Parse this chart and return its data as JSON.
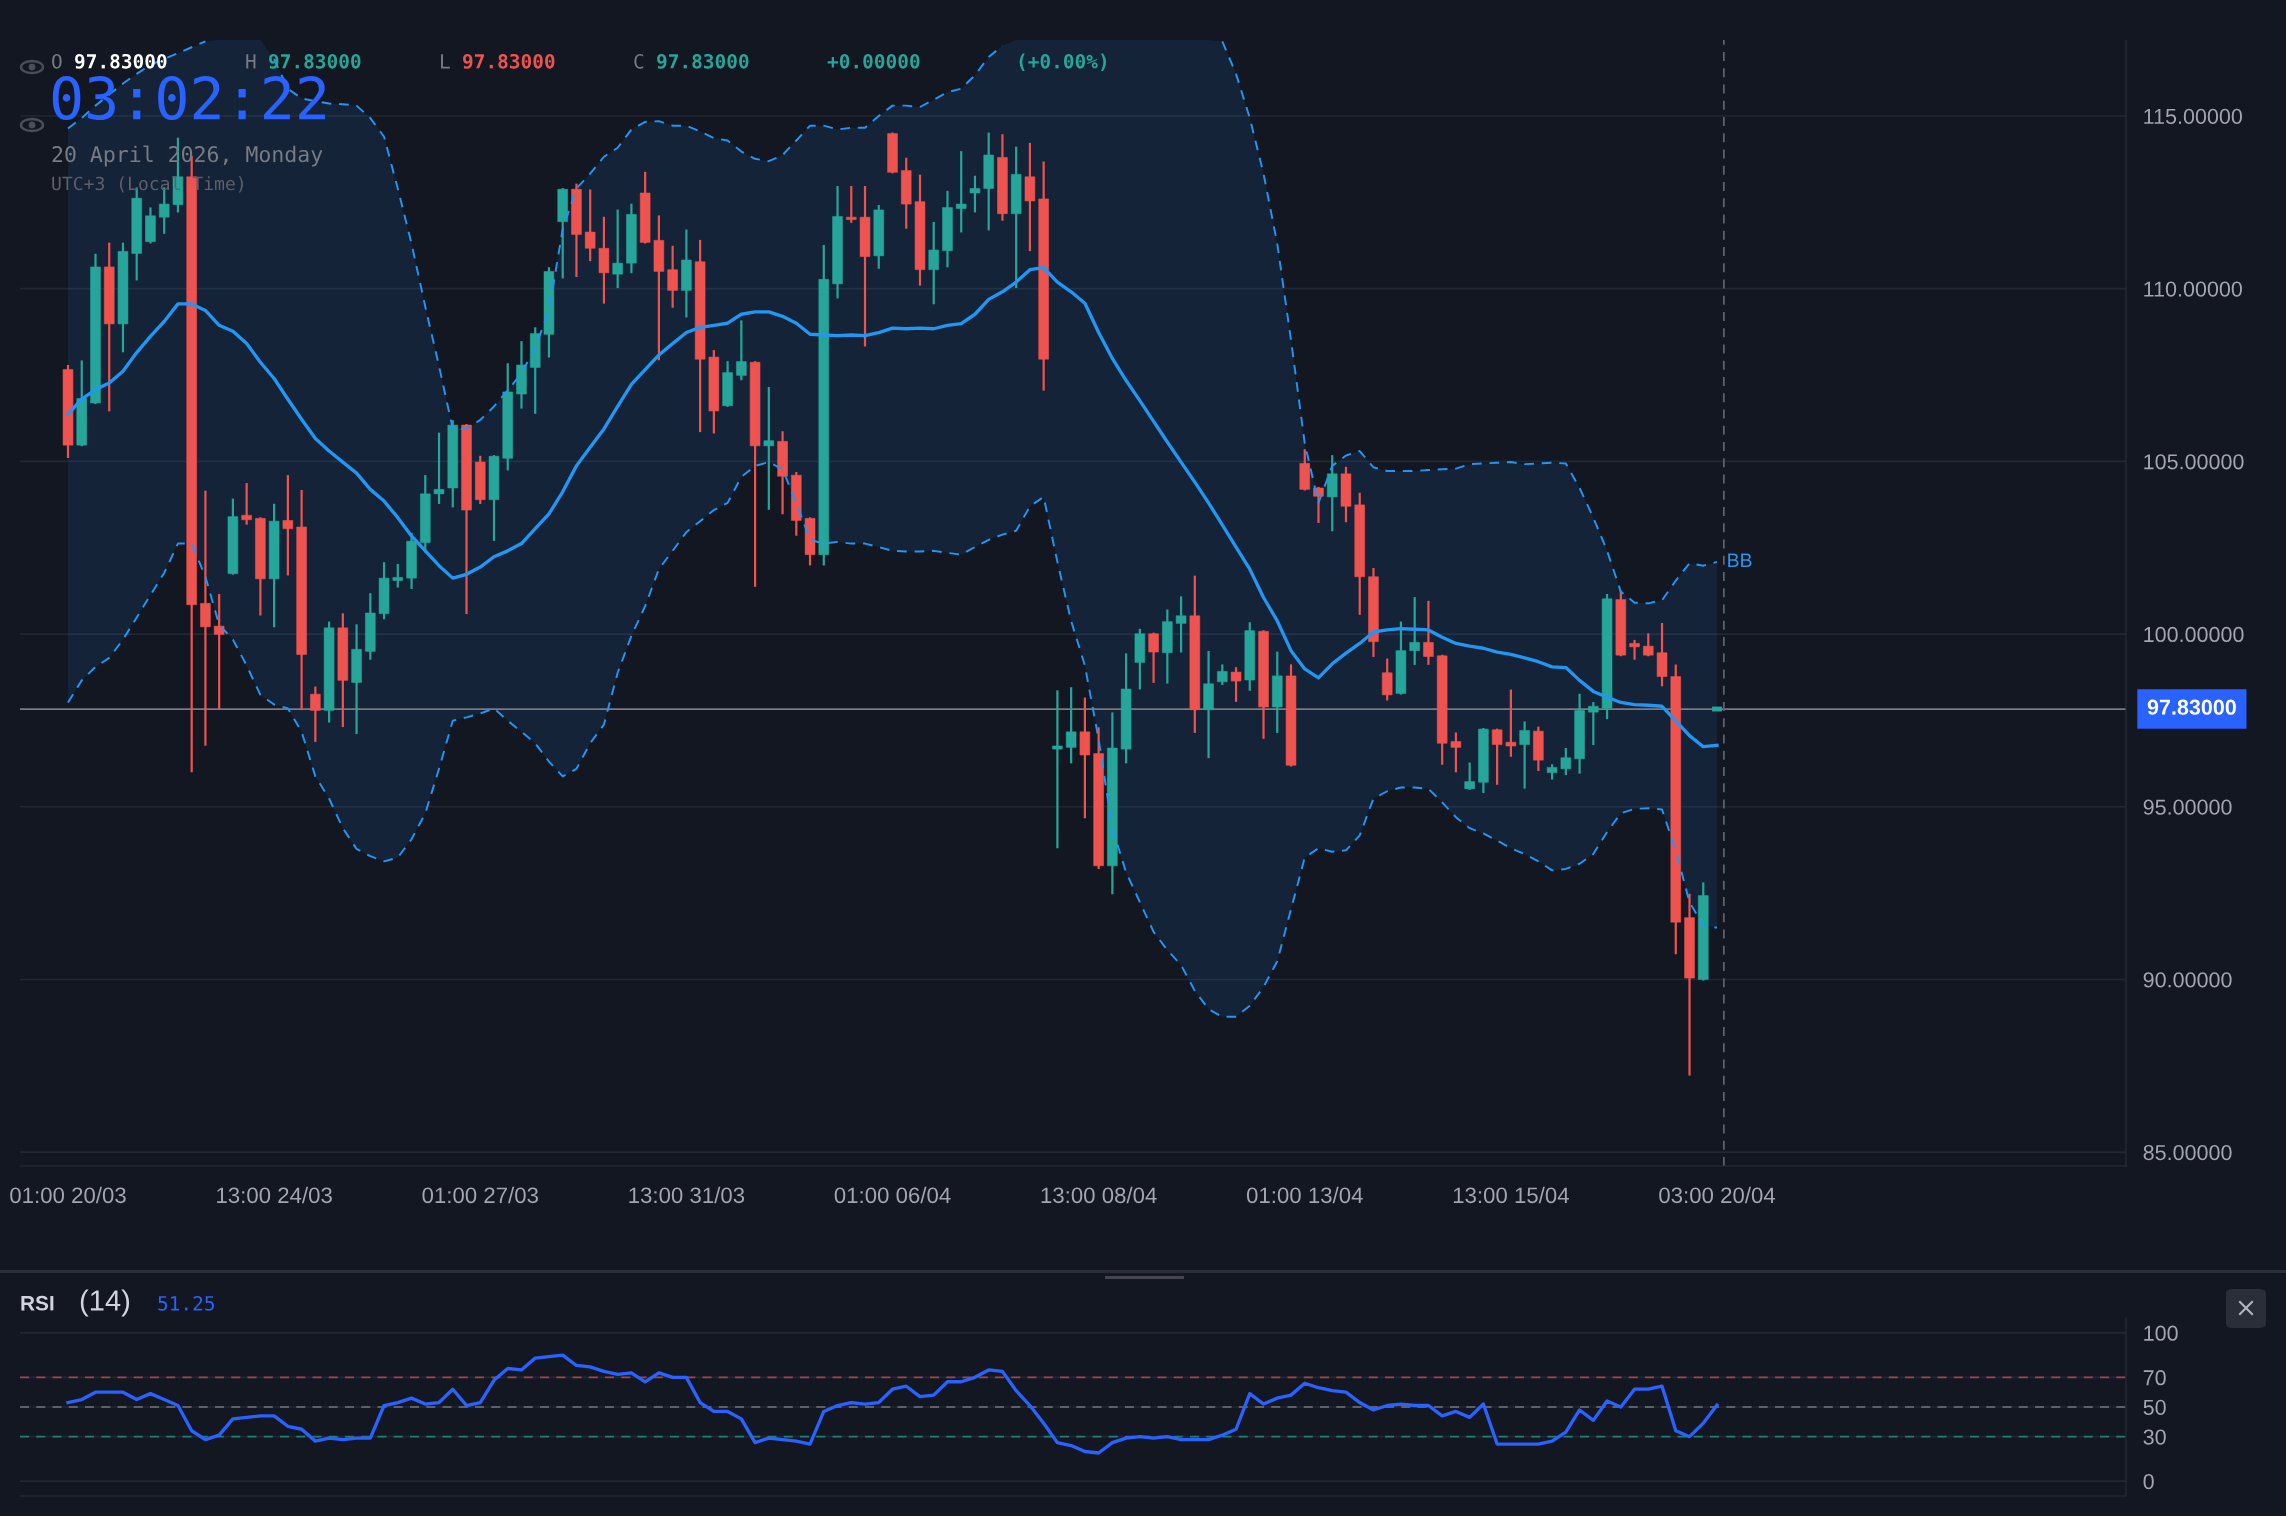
{
  "chart_data": [
    {
      "type": "candlestick",
      "categories": [
        "01:00 20/03",
        null,
        null,
        null,
        null,
        null,
        null,
        null,
        null,
        null,
        null,
        null,
        null,
        null,
        null,
        "13:00 24/03",
        null,
        null,
        null,
        null,
        null,
        null,
        null,
        null,
        null,
        null,
        null,
        null,
        null,
        null,
        "01:00 27/03",
        null,
        null,
        null,
        null,
        null,
        null,
        null,
        null,
        null,
        null,
        null,
        null,
        null,
        null,
        "13:00 31/03",
        null,
        null,
        null,
        null,
        null,
        null,
        null,
        null,
        null,
        null,
        null,
        null,
        null,
        null,
        "01:00 06/04",
        null,
        null,
        null,
        null,
        null,
        null,
        null,
        null,
        null,
        null,
        null,
        null,
        null,
        null,
        "13:00 08/04",
        null,
        null,
        null,
        null,
        null,
        null,
        null,
        null,
        null,
        null,
        null,
        null,
        null,
        null,
        "01:00 13/04",
        null,
        null,
        null,
        null,
        null,
        null,
        null,
        null,
        null,
        null,
        null,
        null,
        null,
        null,
        "13:00 15/04",
        null,
        null,
        null,
        null,
        null,
        null,
        null,
        null,
        null,
        null,
        null,
        null,
        null,
        null,
        "03:00 20/04"
      ],
      "ohlc": [
        [
          107.66,
          107.76,
          105.13,
          105.47
        ],
        [
          105.47,
          107.89,
          105.47,
          106.82
        ],
        [
          106.69,
          110.98,
          106.69,
          110.63
        ],
        [
          110.63,
          111.3,
          106.48,
          108.98
        ],
        [
          108.98,
          111.3,
          108.19,
          111.08
        ],
        [
          111.02,
          112.9,
          110.27,
          112.62
        ],
        [
          111.36,
          112.32,
          111.34,
          112.11
        ],
        [
          112.07,
          112.9,
          111.62,
          112.45
        ],
        [
          112.43,
          114.34,
          112.24,
          113.24
        ],
        [
          113.24,
          113.82,
          96.03,
          100.85
        ],
        [
          100.89,
          104.12,
          96.8,
          100.21
        ],
        [
          100.23,
          101.13,
          97.85,
          99.99
        ],
        [
          101.75,
          103.89,
          101.75,
          103.4
        ],
        [
          103.44,
          104.34,
          103.2,
          103.31
        ],
        [
          103.35,
          103.35,
          100.57,
          101.6
        ],
        [
          101.6,
          103.74,
          100.23,
          103.27
        ],
        [
          103.29,
          104.57,
          101.73,
          103.05
        ],
        [
          103.1,
          104.14,
          97.83,
          99.41
        ],
        [
          98.26,
          98.45,
          96.91,
          97.79
        ],
        [
          97.79,
          100.33,
          97.47,
          100.18
        ],
        [
          100.18,
          100.57,
          97.34,
          98.66
        ],
        [
          98.6,
          100.25,
          97.14,
          99.56
        ],
        [
          99.5,
          101.15,
          99.29,
          100.61
        ],
        [
          100.59,
          102.05,
          100.46,
          101.62
        ],
        [
          101.55,
          102.0,
          101.38,
          101.64
        ],
        [
          101.62,
          102.9,
          101.34,
          102.69
        ],
        [
          102.65,
          104.57,
          102.39,
          104.06
        ],
        [
          104.06,
          105.8,
          103.8,
          104.19
        ],
        [
          104.23,
          106.16,
          103.7,
          106.05
        ],
        [
          106.05,
          106.05,
          100.61,
          103.59
        ],
        [
          104.98,
          105.13,
          103.8,
          103.89
        ],
        [
          103.89,
          105.15,
          102.73,
          105.15
        ],
        [
          105.09,
          107.81,
          104.77,
          107.01
        ],
        [
          106.95,
          108.45,
          106.56,
          107.79
        ],
        [
          107.72,
          108.85,
          106.41,
          108.7
        ],
        [
          108.68,
          110.59,
          108.04,
          110.5
        ],
        [
          111.94,
          112.88,
          110.33,
          112.88
        ],
        [
          112.88,
          113.01,
          110.37,
          111.57
        ],
        [
          111.64,
          112.84,
          110.83,
          111.17
        ],
        [
          111.17,
          112.05,
          109.6,
          110.46
        ],
        [
          110.42,
          112.26,
          110.05,
          110.74
        ],
        [
          110.74,
          112.43,
          110.48,
          112.15
        ],
        [
          112.77,
          113.35,
          111.34,
          111.34
        ],
        [
          111.4,
          112.09,
          107.96,
          110.5
        ],
        [
          110.55,
          111.21,
          109.48,
          109.95
        ],
        [
          109.95,
          111.68,
          109.2,
          110.83
        ],
        [
          110.78,
          111.38,
          105.88,
          107.96
        ],
        [
          108.02,
          108.19,
          105.84,
          106.46
        ],
        [
          106.61,
          107.87,
          106.61,
          107.57
        ],
        [
          107.49,
          109.05,
          107.38,
          107.89
        ],
        [
          107.87,
          107.87,
          101.4,
          105.45
        ],
        [
          105.45,
          107.12,
          103.63,
          105.6
        ],
        [
          105.58,
          105.84,
          103.5,
          104.57
        ],
        [
          104.6,
          104.66,
          102.88,
          103.29
        ],
        [
          103.35,
          103.35,
          102.02,
          102.3
        ],
        [
          102.3,
          111.23,
          102.02,
          110.27
        ],
        [
          110.14,
          112.94,
          109.75,
          112.09
        ],
        [
          112.07,
          112.94,
          111.94,
          112.0
        ],
        [
          112.07,
          112.94,
          108.36,
          110.93
        ],
        [
          110.95,
          112.39,
          110.61,
          112.28
        ],
        [
          114.49,
          114.49,
          113.37,
          113.37
        ],
        [
          113.42,
          113.76,
          111.77,
          112.45
        ],
        [
          112.52,
          113.27,
          110.12,
          110.55
        ],
        [
          110.55,
          111.9,
          109.58,
          111.12
        ],
        [
          111.1,
          112.8,
          110.65,
          112.35
        ],
        [
          112.32,
          113.95,
          111.66,
          112.45
        ],
        [
          112.77,
          113.24,
          112.24,
          112.9
        ],
        [
          112.9,
          114.49,
          111.72,
          113.87
        ],
        [
          113.8,
          114.44,
          112.0,
          112.17
        ],
        [
          112.17,
          114.08,
          110.05,
          113.31
        ],
        [
          113.24,
          114.19,
          111.12,
          112.54
        ],
        [
          112.6,
          113.65,
          107.08,
          107.96
        ],
        [
          96.67,
          98.34,
          93.83,
          96.76
        ],
        [
          96.72,
          98.43,
          96.29,
          97.17
        ],
        [
          97.17,
          98.13,
          94.7,
          96.5
        ],
        [
          96.54,
          97.27,
          93.23,
          93.29
        ],
        [
          93.29,
          97.7,
          92.5,
          96.7
        ],
        [
          96.67,
          99.41,
          96.29,
          98.41
        ],
        [
          99.18,
          100.12,
          98.43,
          100.01
        ],
        [
          100.01,
          100.01,
          98.62,
          99.48
        ],
        [
          99.46,
          100.68,
          98.6,
          100.36
        ],
        [
          100.31,
          101.06,
          99.5,
          100.53
        ],
        [
          100.53,
          101.66,
          97.17,
          97.81
        ],
        [
          97.81,
          99.48,
          96.44,
          98.56
        ],
        [
          98.62,
          99.09,
          98.56,
          98.92
        ],
        [
          98.9,
          99.01,
          98.07,
          98.64
        ],
        [
          98.67,
          100.31,
          98.39,
          100.1
        ],
        [
          100.08,
          100.08,
          97.0,
          97.89
        ],
        [
          97.89,
          99.46,
          97.17,
          98.79
        ],
        [
          98.79,
          99.09,
          96.2,
          96.2
        ],
        [
          104.94,
          105.32,
          104.19,
          104.19
        ],
        [
          104.23,
          104.23,
          103.25,
          103.99
        ],
        [
          103.97,
          105.15,
          103.01,
          104.64
        ],
        [
          104.64,
          104.81,
          103.27,
          103.7
        ],
        [
          103.74,
          104.06,
          100.59,
          101.66
        ],
        [
          101.66,
          101.88,
          99.37,
          99.78
        ],
        [
          98.88,
          99.26,
          98.11,
          98.24
        ],
        [
          98.28,
          100.33,
          98.28,
          99.52
        ],
        [
          99.52,
          101.04,
          99.14,
          99.76
        ],
        [
          99.76,
          100.93,
          99.14,
          99.35
        ],
        [
          99.37,
          99.37,
          96.25,
          96.84
        ],
        [
          96.89,
          97.12,
          96.03,
          96.72
        ],
        [
          95.52,
          96.25,
          95.52,
          95.73
        ],
        [
          95.71,
          97.25,
          95.43,
          97.25
        ],
        [
          97.23,
          97.23,
          95.67,
          96.8
        ],
        [
          96.87,
          98.36,
          96.48,
          96.76
        ],
        [
          96.8,
          97.44,
          95.56,
          97.21
        ],
        [
          97.19,
          97.29,
          96.07,
          96.35
        ],
        [
          95.99,
          96.2,
          95.82,
          96.14
        ],
        [
          96.1,
          96.67,
          95.95,
          96.42
        ],
        [
          96.39,
          98.24,
          95.99,
          97.79
        ],
        [
          97.74,
          98.0,
          96.82,
          97.91
        ],
        [
          97.85,
          101.13,
          97.57,
          101.02
        ],
        [
          101.0,
          101.23,
          99.39,
          99.39
        ],
        [
          99.73,
          99.8,
          99.29,
          99.63
        ],
        [
          99.65,
          99.99,
          99.39,
          99.39
        ],
        [
          99.46,
          100.29,
          98.52,
          98.77
        ],
        [
          98.77,
          99.09,
          90.76,
          91.66
        ],
        [
          91.79,
          92.45,
          87.25,
          90.04
        ],
        [
          90.0,
          92.78,
          90.0,
          92.43
        ],
        [
          97.83,
          97.83,
          97.83,
          97.83
        ]
      ],
      "colors": [
        "#ef5350",
        "#26a69a",
        "#26a69a",
        "#ef5350",
        "#26a69a",
        "#26a69a",
        "#26a69a",
        "#26a69a",
        "#26a69a",
        "#ef5350",
        "#ef5350",
        "#ef5350",
        "#26a69a",
        "#ef5350",
        "#ef5350",
        "#26a69a",
        "#ef5350",
        "#ef5350",
        "#ef5350",
        "#26a69a",
        "#ef5350",
        "#26a69a",
        "#26a69a",
        "#26a69a",
        "#26a69a",
        "#26a69a",
        "#26a69a",
        "#26a69a",
        "#26a69a",
        "#ef5350",
        "#ef5350",
        "#26a69a",
        "#26a69a",
        "#26a69a",
        "#26a69a",
        "#26a69a",
        "#26a69a",
        "#ef5350",
        "#ef5350",
        "#ef5350",
        "#26a69a",
        "#26a69a",
        "#ef5350",
        "#ef5350",
        "#ef5350",
        "#26a69a",
        "#ef5350",
        "#ef5350",
        "#26a69a",
        "#26a69a",
        "#ef5350",
        "#26a69a",
        "#ef5350",
        "#ef5350",
        "#ef5350",
        "#26a69a",
        "#26a69a",
        "#ef5350",
        "#ef5350",
        "#26a69a",
        "#ef5350",
        "#ef5350",
        "#ef5350",
        "#26a69a",
        "#26a69a",
        "#26a69a",
        "#26a69a",
        "#26a69a",
        "#ef5350",
        "#26a69a",
        "#ef5350",
        "#ef5350",
        "#26a69a",
        "#26a69a",
        "#ef5350",
        "#ef5350",
        "#26a69a",
        "#26a69a",
        "#26a69a",
        "#ef5350",
        "#26a69a",
        "#26a69a",
        "#ef5350",
        "#26a69a",
        "#26a69a",
        "#ef5350",
        "#26a69a",
        "#ef5350",
        "#26a69a",
        "#ef5350",
        "#ef5350",
        "#ef5350",
        "#26a69a",
        "#ef5350",
        "#ef5350",
        "#ef5350",
        "#ef5350",
        "#26a69a",
        "#26a69a",
        "#ef5350",
        "#ef5350",
        "#ef5350",
        "#26a69a",
        "#26a69a",
        "#ef5350",
        "#ef5350",
        "#26a69a",
        "#ef5350",
        "#26a69a",
        "#26a69a",
        "#26a69a",
        "#26a69a",
        "#26a69a",
        "#ef5350",
        "#ef5350",
        "#ef5350",
        "#ef5350",
        "#ef5350",
        "#ef5350",
        "#26a69a",
        "#26a69a"
      ],
      "series": [
        {
          "type": "line",
          "name": "BB",
          "color": "#2196f3",
          "values": [
            106.37,
            106.8,
            107.08,
            107.27,
            107.61,
            108.15,
            108.62,
            109.05,
            109.56,
            109.56,
            109.37,
            108.94,
            108.77,
            108.41,
            107.87,
            107.4,
            106.8,
            106.22,
            105.66,
            105.3,
            104.98,
            104.66,
            104.19,
            103.85,
            103.37,
            102.84,
            102.41,
            101.98,
            101.62,
            101.73,
            101.94,
            102.24,
            102.41,
            102.62,
            103.05,
            103.48,
            104.12,
            104.87,
            105.41,
            105.94,
            106.59,
            107.23,
            107.66,
            108.08,
            108.41,
            108.73,
            108.88,
            108.94,
            109.0,
            109.26,
            109.33,
            109.33,
            109.2,
            109.0,
            108.68,
            108.66,
            108.64,
            108.66,
            108.64,
            108.73,
            108.86,
            108.84,
            108.86,
            108.84,
            108.94,
            108.99,
            109.26,
            109.69,
            109.91,
            110.19,
            110.55,
            110.61,
            110.19,
            109.91,
            109.58,
            108.73,
            107.98,
            107.34,
            106.76,
            106.16,
            105.56,
            104.98,
            104.4,
            103.8,
            103.16,
            102.52,
            101.88,
            101.06,
            100.38,
            99.52,
            98.99,
            98.73,
            99.14,
            99.45,
            99.73,
            100.06,
            100.12,
            100.16,
            100.14,
            100.12,
            99.91,
            99.73,
            99.65,
            99.59,
            99.48,
            99.41,
            99.31,
            99.2,
            99.05,
            99.03,
            98.66,
            98.34,
            98.17,
            98.02,
            97.96,
            97.94,
            97.91,
            97.49,
            97.06,
            96.74,
            96.78
          ],
          "lower": [
            98.02,
            98.66,
            99.05,
            99.31,
            99.84,
            100.48,
            101.13,
            101.77,
            102.62,
            102.62,
            101.66,
            100.27,
            99.84,
            99.09,
            98.24,
            97.96,
            97.85,
            97.17,
            95.88,
            95.24,
            94.38,
            93.78,
            93.57,
            93.42,
            93.53,
            94.06,
            94.81,
            96.1,
            97.49,
            97.59,
            97.7,
            97.85,
            97.49,
            97.17,
            96.84,
            96.31,
            95.88,
            96.1,
            96.84,
            97.38,
            98.88,
            99.95,
            100.81,
            101.88,
            102.41,
            102.95,
            103.27,
            103.59,
            103.8,
            104.55,
            104.87,
            104.98,
            104.77,
            103.8,
            102.73,
            102.62,
            102.67,
            102.62,
            102.62,
            102.52,
            102.41,
            102.39,
            102.39,
            102.41,
            102.35,
            102.3,
            102.52,
            102.73,
            102.88,
            102.99,
            103.7,
            103.97,
            102.09,
            100.38,
            99.09,
            96.95,
            94.38,
            93.1,
            92.24,
            91.38,
            90.85,
            90.42,
            89.67,
            89.14,
            88.92,
            88.92,
            89.24,
            89.78,
            90.53,
            92.03,
            93.53,
            93.8,
            93.7,
            93.74,
            94.17,
            95.24,
            95.45,
            95.56,
            95.56,
            95.52,
            95.13,
            94.7,
            94.38,
            94.23,
            94.02,
            93.8,
            93.63,
            93.42,
            93.16,
            93.2,
            93.35,
            93.63,
            94.27,
            94.81,
            94.94,
            94.96,
            94.92,
            93.74,
            92.24,
            91.56,
            91.5
          ],
          "upper": [
            114.64,
            114.94,
            115.3,
            115.62,
            115.94,
            116.22,
            116.48,
            116.65,
            116.82,
            116.99,
            117.16,
            117.2,
            117.2,
            117.2,
            117.2,
            116.65,
            115.79,
            115.51,
            115.43,
            115.36,
            115.34,
            115.3,
            114.94,
            114.4,
            112.9,
            111.3,
            109.48,
            107.76,
            105.94,
            105.94,
            106.2,
            106.59,
            107.06,
            107.55,
            108.3,
            109.37,
            111.72,
            112.9,
            113.33,
            113.82,
            114.08,
            114.61,
            114.83,
            114.85,
            114.72,
            114.72,
            114.55,
            114.36,
            114.29,
            113.97,
            113.76,
            113.69,
            113.87,
            114.29,
            114.72,
            114.72,
            114.61,
            114.66,
            114.66,
            115.0,
            115.3,
            115.3,
            115.26,
            115.47,
            115.69,
            115.79,
            116.18,
            116.71,
            117.03,
            117.2,
            117.2,
            117.2,
            117.2,
            117.2,
            117.2,
            117.2,
            117.2,
            117.2,
            117.2,
            117.2,
            117.2,
            117.2,
            117.2,
            117.2,
            117.16,
            116.22,
            114.94,
            113.33,
            111.3,
            108.51,
            105.52,
            103.8,
            104.87,
            105.17,
            105.3,
            104.83,
            104.72,
            104.72,
            104.72,
            104.75,
            104.77,
            104.79,
            104.92,
            104.94,
            104.96,
            104.98,
            104.92,
            104.94,
            104.96,
            104.94,
            104.23,
            103.37,
            102.41,
            101.23,
            100.91,
            100.89,
            100.98,
            101.55,
            102.05,
            101.98,
            102.09
          ]
        },
        {
          "type": "line",
          "color": "#2196f3",
          "line_style": "dashed",
          "values": [
            114.64,
            114.94,
            115.3,
            115.62,
            115.94,
            116.22,
            116.48,
            116.65,
            116.82,
            116.99,
            117.16,
            null,
            null,
            null,
            null,
            116.65,
            115.79,
            115.51,
            115.43,
            115.36,
            115.34,
            115.3,
            114.94,
            114.4,
            112.9,
            111.3,
            109.48,
            107.76,
            105.94,
            105.94,
            106.2,
            106.59,
            107.06,
            107.55,
            108.3,
            109.37,
            111.72,
            112.9,
            113.33,
            113.82,
            114.08,
            114.61,
            114.83,
            114.85,
            114.72,
            114.72,
            114.55,
            114.36,
            114.29,
            113.97,
            113.76,
            113.69,
            113.87,
            114.29,
            114.72,
            114.72,
            114.61,
            114.66,
            114.66,
            115.0,
            115.3,
            115.3,
            115.26,
            115.47,
            115.69,
            115.79,
            116.18,
            116.71,
            117.03,
            null,
            null,
            null,
            null,
            null,
            null,
            null,
            null,
            null,
            null,
            null,
            null,
            null,
            null,
            null,
            117.16,
            116.22,
            114.94,
            113.33,
            111.3,
            108.51,
            105.52,
            103.8,
            104.87,
            105.17,
            105.3,
            104.83,
            104.72,
            104.72,
            104.72,
            104.75,
            104.77,
            104.79,
            104.92,
            104.94,
            104.96,
            104.98,
            104.92,
            104.94,
            104.96,
            104.94,
            104.23,
            103.37,
            102.41,
            101.23,
            100.91,
            100.89,
            100.98,
            101.55,
            102.05,
            101.98,
            102.09
          ]
        },
        {
          "type": "line",
          "color": "#2196f3",
          "line_style": "dashed",
          "values": [
            98.02,
            98.66,
            99.05,
            99.31,
            99.84,
            100.48,
            101.13,
            101.77,
            102.62,
            102.62,
            101.66,
            100.27,
            99.84,
            99.09,
            98.24,
            97.96,
            97.85,
            97.17,
            95.88,
            95.24,
            94.38,
            93.78,
            93.57,
            93.42,
            93.53,
            94.06,
            94.81,
            96.1,
            97.49,
            97.59,
            97.7,
            97.85,
            97.49,
            97.17,
            96.84,
            96.31,
            95.88,
            96.1,
            96.84,
            97.38,
            98.88,
            99.95,
            100.81,
            101.88,
            102.41,
            102.95,
            103.27,
            103.59,
            103.8,
            104.55,
            104.87,
            104.98,
            104.77,
            103.8,
            102.73,
            102.62,
            102.67,
            102.62,
            102.62,
            102.52,
            102.41,
            102.39,
            102.39,
            102.41,
            102.35,
            102.3,
            102.52,
            102.73,
            102.88,
            102.99,
            103.7,
            103.97,
            102.09,
            100.38,
            99.09,
            96.95,
            94.38,
            93.1,
            92.24,
            91.38,
            90.85,
            90.42,
            89.67,
            89.14,
            88.92,
            88.92,
            89.24,
            89.78,
            90.53,
            92.03,
            93.53,
            93.8,
            93.7,
            93.74,
            94.17,
            95.24,
            95.45,
            95.56,
            95.56,
            95.52,
            95.13,
            94.7,
            94.38,
            94.23,
            94.02,
            93.8,
            93.63,
            93.42,
            93.16,
            93.2,
            93.35,
            93.63,
            94.27,
            94.81,
            94.94,
            94.96,
            94.92,
            93.74,
            92.24,
            91.56,
            91.5
          ]
        }
      ],
      "ylim": [
        84.6,
        117.2
      ],
      "yticks": [
        {
          "value": 85,
          "label": "85.00000"
        },
        {
          "value": 90,
          "label": "90.00000"
        },
        {
          "value": 95,
          "label": "95.00000"
        },
        {
          "value": 100,
          "label": "100.00000"
        },
        {
          "value": 105,
          "label": "105.00000"
        },
        {
          "value": 110,
          "label": "110.00000"
        },
        {
          "value": 115,
          "label": "115.00000"
        }
      ],
      "grid": "y",
      "ref_lines": [
        {
          "axis": "y",
          "value": 97.83,
          "label": "97.83000",
          "color": "#787b86"
        },
        {
          "axis": "x",
          "value": "03:00 20/04",
          "color": "#5d606b",
          "line_style": "dashed"
        }
      ],
      "annotations": [
        "O",
        "97.83000",
        "H",
        "97.83000",
        "L",
        "97.83000",
        "C",
        "97.83000",
        "+0.00000",
        "(+0.00%)",
        "03:02:22",
        "20 April 2026, Monday",
        "UTC+3 (Local Time)"
      ]
    },
    {
      "type": "line",
      "title": "RSI",
      "subtitle": "(14)",
      "annotations": [
        "51.25"
      ],
      "categories": [
        null,
        null,
        null,
        null,
        null,
        null,
        null,
        null,
        null,
        null,
        null,
        null,
        null,
        null,
        null,
        null,
        null,
        null,
        null,
        null,
        null,
        null,
        null,
        null,
        null,
        null,
        null,
        null,
        null,
        null,
        null,
        null,
        null,
        null,
        null,
        null,
        null,
        null,
        null,
        null,
        null,
        null,
        null,
        null,
        null,
        null,
        null,
        null,
        null,
        null,
        null,
        null,
        null,
        null,
        null,
        null,
        null,
        null,
        null,
        null,
        null,
        null,
        null,
        null,
        null,
        null,
        null,
        null,
        null,
        null,
        null,
        null,
        null,
        null,
        null,
        null,
        null,
        null,
        null,
        null,
        null,
        null,
        null,
        null,
        null,
        null,
        null,
        null,
        null,
        null,
        null,
        null,
        null,
        null,
        null,
        null,
        null,
        null,
        null,
        null,
        null,
        null,
        null,
        null,
        null,
        null,
        null,
        null,
        null,
        null,
        null,
        null,
        null,
        null,
        null,
        null,
        null,
        null,
        null,
        null,
        null
      ],
      "series": [
        {
          "color": "#2962ff",
          "values": [
            53,
            55,
            60,
            60,
            60,
            55,
            59,
            55,
            51,
            34,
            28,
            31,
            42,
            43,
            44,
            44,
            37,
            35,
            27,
            29,
            28,
            29,
            29,
            51,
            53,
            56,
            52,
            53,
            62,
            51,
            53,
            68,
            76,
            75,
            83,
            84,
            85,
            78,
            77,
            74,
            72,
            73,
            67,
            73,
            70,
            70,
            53,
            47,
            47,
            42,
            26,
            29,
            28,
            27,
            25,
            47,
            51,
            53,
            52,
            53,
            62,
            64,
            57,
            58,
            67,
            67,
            70,
            75,
            74,
            61,
            51,
            39,
            26,
            24,
            20,
            19,
            26,
            29,
            30,
            29,
            30,
            28,
            28,
            28,
            31,
            35,
            59,
            52,
            56,
            58,
            66,
            63,
            61,
            60,
            53,
            48,
            51,
            52,
            51,
            51,
            44,
            47,
            43,
            52,
            25,
            25,
            25,
            25,
            27,
            33,
            48,
            41,
            54,
            50,
            62,
            62,
            64,
            34,
            30,
            39,
            51.25
          ]
        }
      ],
      "ylim": [
        -10,
        110
      ],
      "yticks": [
        0,
        30,
        50,
        70,
        100
      ],
      "grid": "y",
      "tick_labels": "y",
      "ref_lines": [
        {
          "axis": "y",
          "value": 70,
          "color": "#a24447",
          "line_style": "dashed"
        },
        {
          "axis": "y",
          "value": 50,
          "color": "#5d606b",
          "line_style": "dashed"
        },
        {
          "axis": "y",
          "value": 30,
          "color": "#1e7d74",
          "line_style": "dashed"
        }
      ]
    }
  ]
}
